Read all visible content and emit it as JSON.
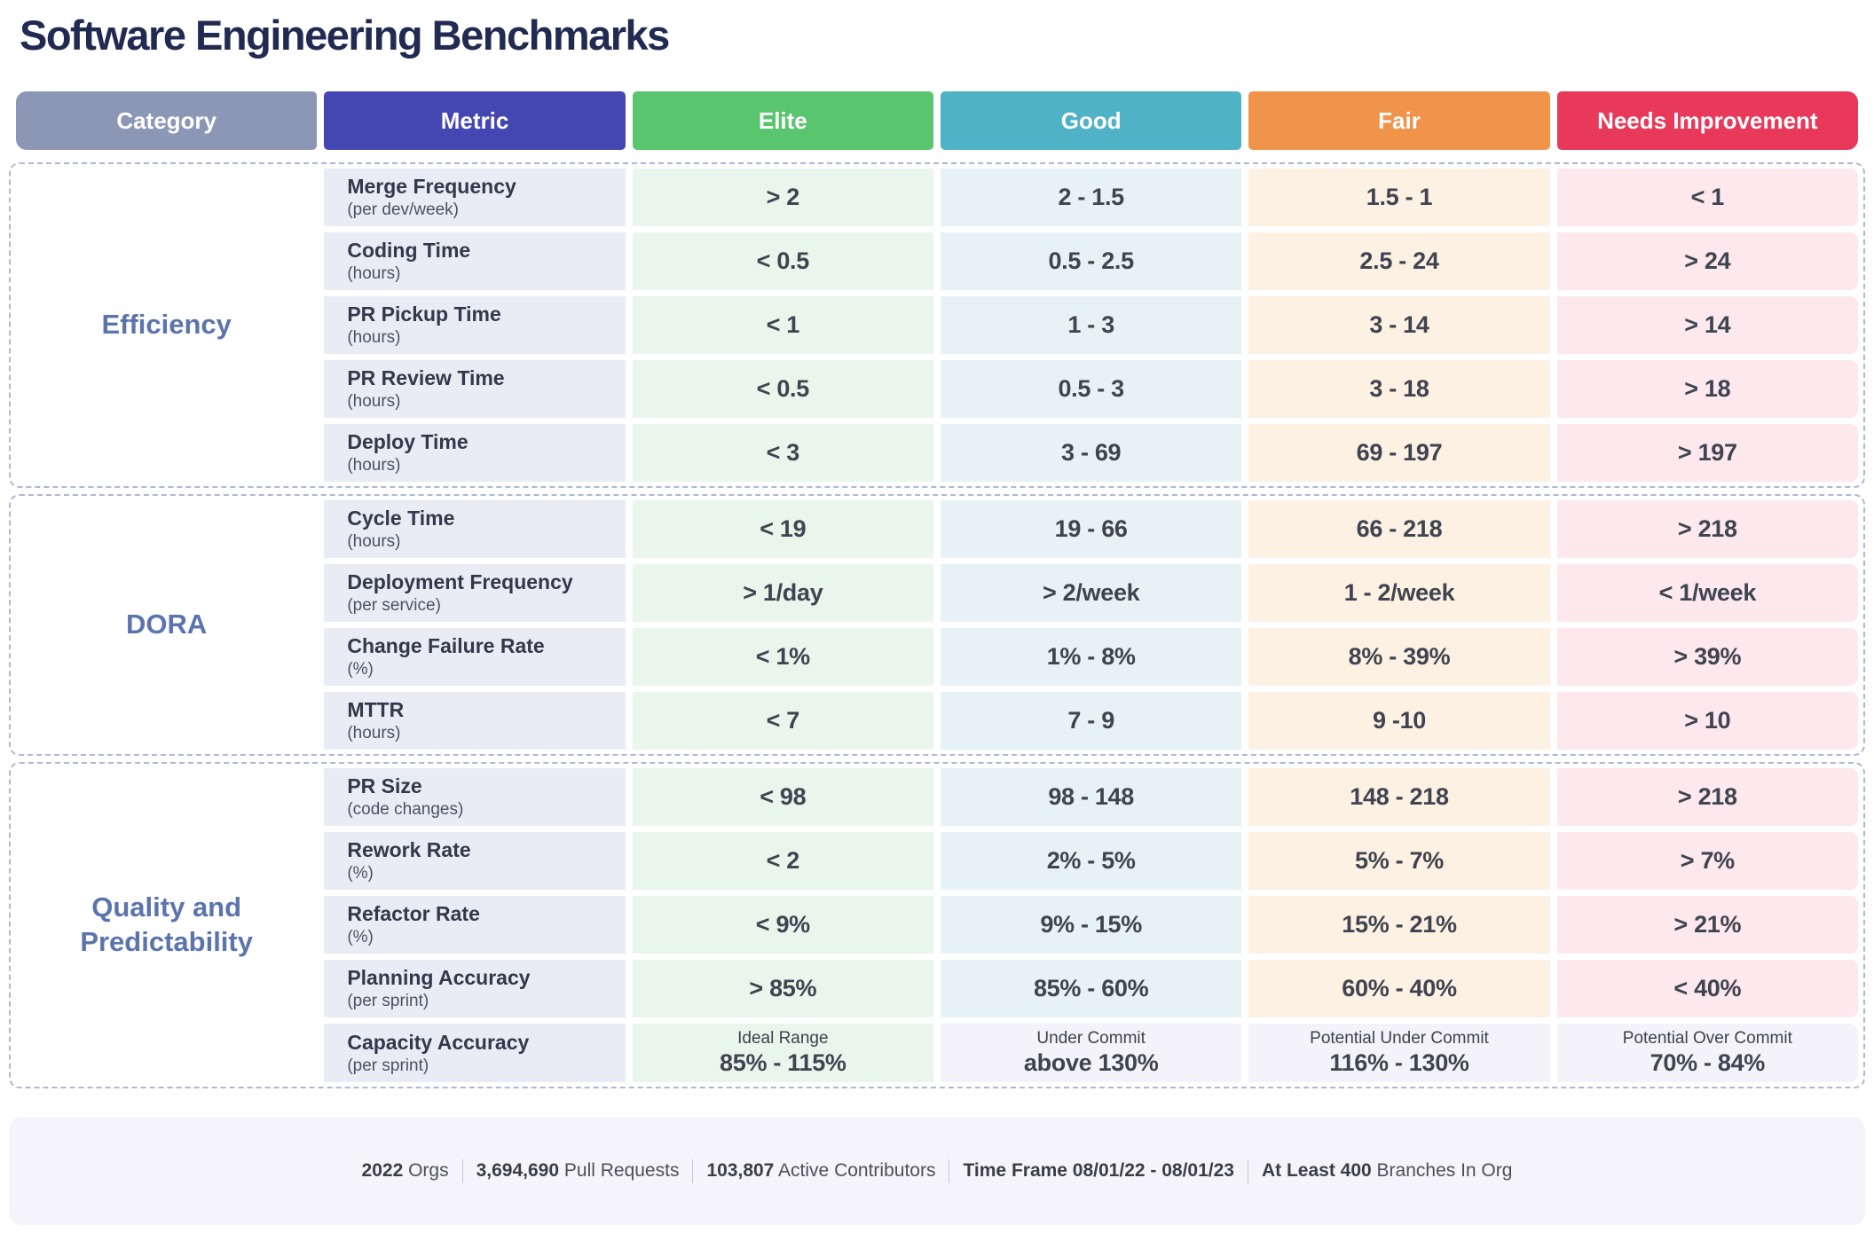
{
  "title": "Software Engineering Benchmarks",
  "header": {
    "columns": [
      {
        "id": "category",
        "label": "Category",
        "color": "#8c97b5"
      },
      {
        "id": "metric",
        "label": "Metric",
        "color": "#4447b2"
      },
      {
        "id": "elite",
        "label": "Elite",
        "color": "#59c56f"
      },
      {
        "id": "good",
        "label": "Good",
        "color": "#4fb2c6"
      },
      {
        "id": "fair",
        "label": "Fair",
        "color": "#f0934b"
      },
      {
        "id": "needs",
        "label": "Needs Improvement",
        "color": "#e8395b"
      }
    ]
  },
  "colors": {
    "title_text": "#212b52",
    "category_text": "#5b74ae",
    "metric_cell": "#e9ebf5",
    "elite_cell": "#e9f6ec",
    "good_cell": "#e6f2f6",
    "fair_cell": "#fdf1e3",
    "needs_cell": "#fce8ed",
    "neutral_cell": "#f4f3fa",
    "section_border": "#aeb8d3"
  },
  "sections": [
    {
      "category": "Efficiency",
      "rows": [
        {
          "metric": "Merge Frequency",
          "unit": "(per dev/week)",
          "elite": {
            "value": "> 2"
          },
          "good": {
            "value": "2 - 1.5"
          },
          "fair": {
            "value": "1.5 - 1"
          },
          "needs": {
            "value": "< 1"
          }
        },
        {
          "metric": "Coding Time",
          "unit": "(hours)",
          "elite": {
            "value": "< 0.5"
          },
          "good": {
            "value": "0.5 - 2.5"
          },
          "fair": {
            "value": "2.5 - 24"
          },
          "needs": {
            "value": "> 24"
          }
        },
        {
          "metric": "PR Pickup Time",
          "unit": "(hours)",
          "elite": {
            "value": "< 1"
          },
          "good": {
            "value": "1 - 3"
          },
          "fair": {
            "value": "3 - 14"
          },
          "needs": {
            "value": "> 14"
          }
        },
        {
          "metric": "PR Review Time",
          "unit": "(hours)",
          "elite": {
            "value": "< 0.5"
          },
          "good": {
            "value": "0.5 - 3"
          },
          "fair": {
            "value": "3 - 18"
          },
          "needs": {
            "value": "> 18"
          }
        },
        {
          "metric": "Deploy Time",
          "unit": "(hours)",
          "elite": {
            "value": "< 3"
          },
          "good": {
            "value": "3 - 69"
          },
          "fair": {
            "value": "69 - 197"
          },
          "needs": {
            "value": "> 197"
          }
        }
      ]
    },
    {
      "category": "DORA",
      "rows": [
        {
          "metric": "Cycle Time",
          "unit": "(hours)",
          "elite": {
            "value": "< 19"
          },
          "good": {
            "value": "19 - 66"
          },
          "fair": {
            "value": "66 - 218"
          },
          "needs": {
            "value": "> 218"
          }
        },
        {
          "metric": "Deployment Frequency",
          "unit": "(per service)",
          "elite": {
            "value": "> 1/day"
          },
          "good": {
            "value": "> 2/week"
          },
          "fair": {
            "value": "1 - 2/week"
          },
          "needs": {
            "value": "< 1/week"
          }
        },
        {
          "metric": "Change Failure Rate",
          "unit": "(%)",
          "elite": {
            "value": "< 1%"
          },
          "good": {
            "value": "1% - 8%"
          },
          "fair": {
            "value": "8% - 39%"
          },
          "needs": {
            "value": "> 39%"
          }
        },
        {
          "metric": "MTTR",
          "unit": "(hours)",
          "elite": {
            "value": "< 7"
          },
          "good": {
            "value": "7 - 9"
          },
          "fair": {
            "value": "9 -10"
          },
          "needs": {
            "value": "> 10"
          }
        }
      ]
    },
    {
      "category": "Quality and Predictability",
      "rows": [
        {
          "metric": "PR Size",
          "unit": "(code changes)",
          "elite": {
            "value": "< 98"
          },
          "good": {
            "value": "98 - 148"
          },
          "fair": {
            "value": "148 - 218"
          },
          "needs": {
            "value": "> 218"
          }
        },
        {
          "metric": "Rework Rate",
          "unit": "(%)",
          "elite": {
            "value": "< 2"
          },
          "good": {
            "value": "2% - 5%"
          },
          "fair": {
            "value": "5% - 7%"
          },
          "needs": {
            "value": "> 7%"
          }
        },
        {
          "metric": "Refactor Rate",
          "unit": "(%)",
          "elite": {
            "value": "< 9%"
          },
          "good": {
            "value": "9% - 15%"
          },
          "fair": {
            "value": "15% - 21%"
          },
          "needs": {
            "value": "> 21%"
          }
        },
        {
          "metric": "Planning Accuracy",
          "unit": "(per sprint)",
          "elite": {
            "value": "> 85%"
          },
          "good": {
            "value": "85% - 60%"
          },
          "fair": {
            "value": "60% - 40%"
          },
          "needs": {
            "value": "< 40%"
          }
        },
        {
          "metric": "Capacity Accuracy",
          "unit": "(per sprint)",
          "elite": {
            "note": "Ideal Range",
            "value": "85% - 115%"
          },
          "good": {
            "note": "Under Commit",
            "value": "above 130%",
            "neutral": true
          },
          "fair": {
            "note": "Potential Under Commit",
            "value": "116% - 130%",
            "neutral": true
          },
          "needs": {
            "note": "Potential Over Commit",
            "value": "70% - 84%",
            "neutral": true
          }
        }
      ]
    }
  ],
  "footer": {
    "stats": [
      {
        "parts": [
          {
            "t": "2022",
            "b": true
          },
          {
            "t": " Orgs",
            "b": false
          }
        ]
      },
      {
        "parts": [
          {
            "t": "3,694,690",
            "b": true
          },
          {
            "t": " Pull Requests",
            "b": false
          }
        ]
      },
      {
        "parts": [
          {
            "t": "103,807",
            "b": true
          },
          {
            "t": " Active Contributors",
            "b": false
          }
        ]
      },
      {
        "parts": [
          {
            "t": "Time Frame",
            "b": true
          },
          {
            "t": "  08/01/22 - 08/01/23",
            "b": true
          }
        ]
      },
      {
        "parts": [
          {
            "t": "At Least 400",
            "b": true
          },
          {
            "t": " Branches In Org",
            "b": false
          }
        ]
      }
    ]
  },
  "chart_data": {
    "type": "table",
    "title": "Software Engineering Benchmarks",
    "columns": [
      "Category",
      "Metric",
      "Elite",
      "Good",
      "Fair",
      "Needs Improvement"
    ],
    "rows": [
      [
        "Efficiency",
        "Merge Frequency (per dev/week)",
        "> 2",
        "2 - 1.5",
        "1.5 - 1",
        "< 1"
      ],
      [
        "Efficiency",
        "Coding Time (hours)",
        "< 0.5",
        "0.5 - 2.5",
        "2.5 - 24",
        "> 24"
      ],
      [
        "Efficiency",
        "PR Pickup Time (hours)",
        "< 1",
        "1 - 3",
        "3 - 14",
        "> 14"
      ],
      [
        "Efficiency",
        "PR Review Time (hours)",
        "< 0.5",
        "0.5 - 3",
        "3 - 18",
        "> 18"
      ],
      [
        "Efficiency",
        "Deploy Time (hours)",
        "< 3",
        "3 - 69",
        "69 - 197",
        "> 197"
      ],
      [
        "DORA",
        "Cycle Time (hours)",
        "< 19",
        "19 - 66",
        "66 - 218",
        "> 218"
      ],
      [
        "DORA",
        "Deployment Frequency (per service)",
        "> 1/day",
        "> 2/week",
        "1 - 2/week",
        "< 1/week"
      ],
      [
        "DORA",
        "Change Failure Rate (%)",
        "< 1%",
        "1% - 8%",
        "8% - 39%",
        "> 39%"
      ],
      [
        "DORA",
        "MTTR (hours)",
        "< 7",
        "7 - 9",
        "9 -10",
        "> 10"
      ],
      [
        "Quality and Predictability",
        "PR Size (code changes)",
        "< 98",
        "98 - 148",
        "148 - 218",
        "> 218"
      ],
      [
        "Quality and Predictability",
        "Rework Rate (%)",
        "< 2",
        "2% - 5%",
        "5% - 7%",
        "> 7%"
      ],
      [
        "Quality and Predictability",
        "Refactor Rate (%)",
        "< 9%",
        "9% - 15%",
        "15% - 21%",
        "> 21%"
      ],
      [
        "Quality and Predictability",
        "Planning Accuracy (per sprint)",
        "> 85%",
        "85% - 60%",
        "60% - 40%",
        "< 40%"
      ],
      [
        "Quality and Predictability",
        "Capacity Accuracy (per sprint)",
        "Ideal Range 85% - 115%",
        "Under Commit above 130%",
        "Potential Under Commit 116% - 130%",
        "Potential Over Commit 70% - 84%"
      ]
    ]
  }
}
